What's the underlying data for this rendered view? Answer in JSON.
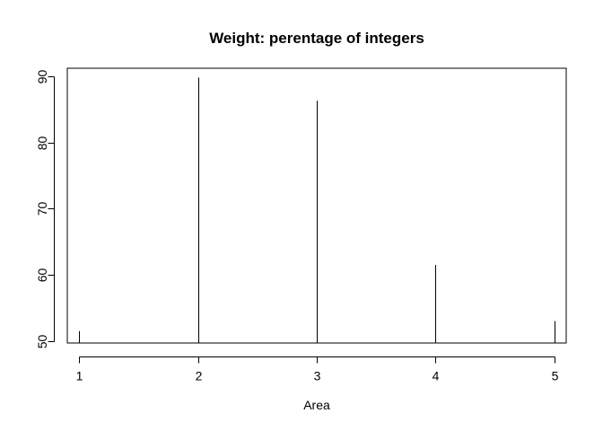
{
  "chart_data": {
    "type": "bar",
    "style": "histogram-type vertical lines",
    "title": "Weight: perentage of integers",
    "xlabel": "Area",
    "ylabel": "",
    "x": [
      1,
      2,
      3,
      4,
      5
    ],
    "values": [
      51.5,
      89.8,
      86.3,
      61.5,
      53.0
    ],
    "xlim": [
      0.9,
      5.1
    ],
    "ylim": [
      49.7,
      91.2
    ],
    "xticks": [
      1,
      2,
      3,
      4,
      5
    ],
    "yticks": [
      50,
      60,
      70,
      80,
      90
    ],
    "grid": false,
    "legend": "none",
    "colors": {
      "line": "#000000",
      "background": "#ffffff"
    }
  }
}
